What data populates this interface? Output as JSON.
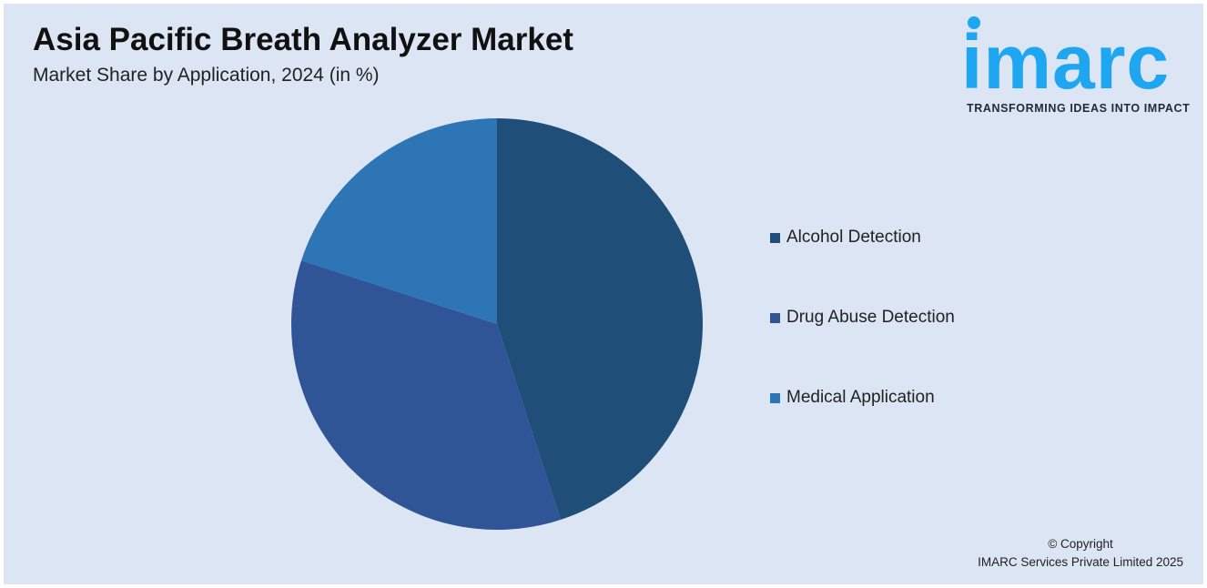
{
  "header": {
    "title": "Asia Pacific Breath Analyzer Market",
    "subtitle": "Market Share by Application, 2024 (in %)"
  },
  "logo": {
    "wordmark": "imarc",
    "tagline": "TRANSFORMING IDEAS INTO IMPACT",
    "color": "#1ea7f0"
  },
  "chart_data": {
    "type": "pie",
    "title": "Asia Pacific Breath Analyzer Market",
    "subtitle": "Market Share by Application, 2024 (in %)",
    "categories": [
      "Alcohol Detection",
      "Drug Abuse Detection",
      "Medical Application"
    ],
    "values": [
      45,
      35,
      20
    ],
    "colors": [
      "#1f4e79",
      "#2f5597",
      "#2e75b6"
    ],
    "start_angle_deg": 0,
    "direction": "clockwise",
    "legend_position": "right",
    "data_labels": false
  },
  "footer": {
    "copyright_line1": "© Copyright",
    "copyright_line2": "IMARC Services Private Limited 2025"
  }
}
